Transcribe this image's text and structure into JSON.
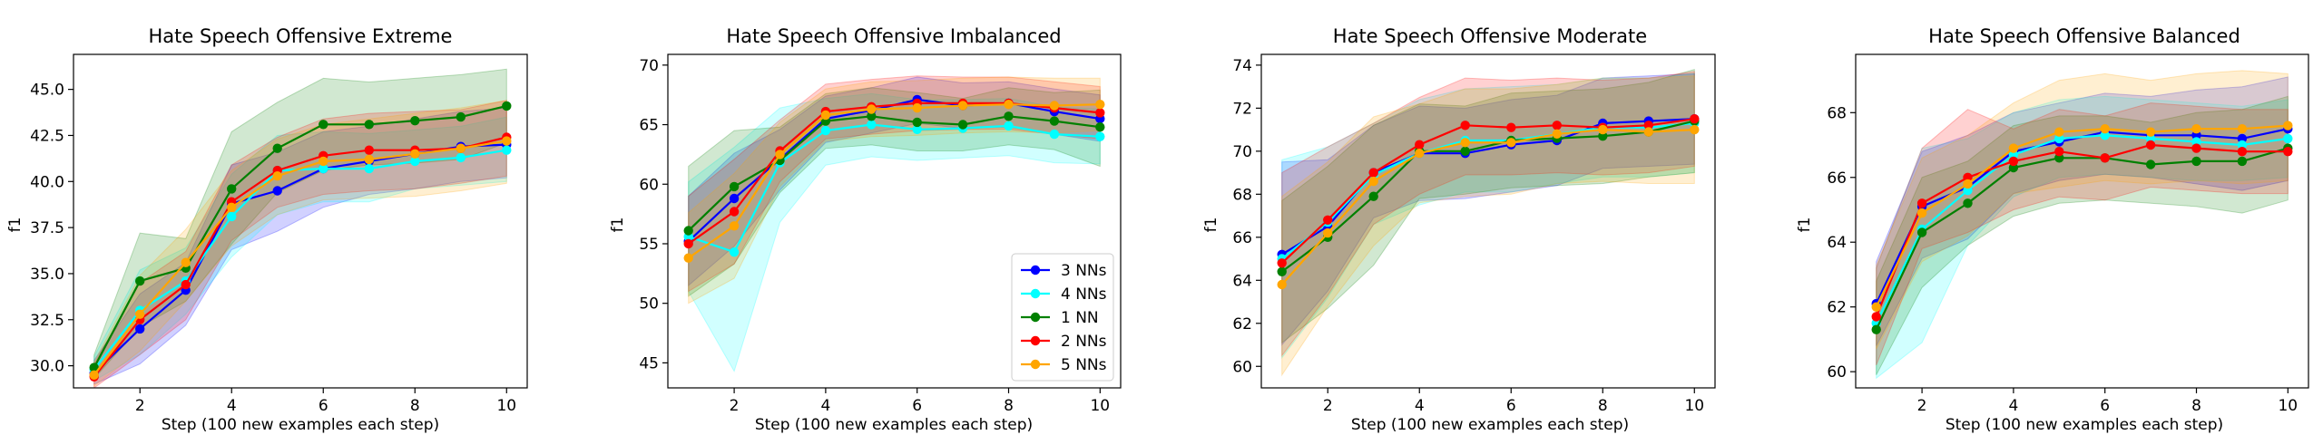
{
  "chart_data": [
    {
      "type": "line",
      "title": "Hate Speech Offensive Extreme",
      "xlabel": "Step (100 new examples each step)",
      "ylabel": "f1",
      "xlim": [
        0.55,
        10.45
      ],
      "ylim": [
        28.8,
        46.9
      ],
      "xticks": [
        2,
        4,
        6,
        8,
        10
      ],
      "yticks": [
        30.0,
        32.5,
        35.0,
        37.5,
        40.0,
        42.5,
        45.0
      ],
      "ytick_labels": [
        "30.0",
        "32.5",
        "35.0",
        "37.5",
        "40.0",
        "42.5",
        "45.0"
      ],
      "x": [
        1,
        2,
        3,
        4,
        5,
        6,
        7,
        8,
        9,
        10
      ],
      "series": [
        {
          "name": "3 NNs",
          "color": "#0000ff",
          "values": [
            29.6,
            32.0,
            34.1,
            38.8,
            39.5,
            40.7,
            41.1,
            41.5,
            41.9,
            42.0
          ],
          "lower": [
            29.0,
            30.1,
            32.2,
            36.3,
            37.3,
            38.6,
            39.3,
            39.6,
            40.0,
            40.2
          ],
          "upper": [
            30.3,
            33.9,
            35.6,
            40.9,
            41.6,
            42.7,
            43.0,
            43.4,
            43.8,
            44.0
          ]
        },
        {
          "name": "4 NNs",
          "color": "#00ffff",
          "values": [
            29.8,
            33.0,
            34.6,
            38.1,
            40.6,
            40.7,
            40.7,
            41.1,
            41.3,
            41.7
          ],
          "lower": [
            29.2,
            30.6,
            32.8,
            35.9,
            38.2,
            38.9,
            38.9,
            39.6,
            39.8,
            40.0
          ],
          "upper": [
            30.5,
            35.2,
            36.4,
            40.4,
            42.5,
            42.7,
            42.6,
            42.8,
            43.0,
            43.5
          ]
        },
        {
          "name": "1 NN",
          "color": "#008000",
          "values": [
            29.9,
            34.6,
            35.3,
            39.6,
            41.8,
            43.1,
            43.1,
            43.3,
            43.5,
            44.1
          ],
          "lower": [
            29.3,
            32.1,
            33.5,
            36.6,
            39.4,
            40.6,
            40.9,
            41.0,
            41.2,
            42.1
          ],
          "upper": [
            30.6,
            37.2,
            36.9,
            42.7,
            44.3,
            45.6,
            45.4,
            45.6,
            45.8,
            46.1
          ]
        },
        {
          "name": "2 NNs",
          "color": "#ff0000",
          "values": [
            29.4,
            32.5,
            34.4,
            38.9,
            40.6,
            41.4,
            41.7,
            41.7,
            41.8,
            42.4
          ],
          "lower": [
            28.8,
            30.6,
            32.5,
            36.8,
            38.6,
            39.3,
            39.5,
            39.6,
            39.9,
            40.3
          ],
          "upper": [
            30.1,
            34.5,
            36.2,
            40.9,
            42.4,
            43.4,
            43.7,
            43.8,
            43.9,
            44.4
          ]
        },
        {
          "name": "5 NNs",
          "color": "#ffa500",
          "values": [
            29.5,
            32.8,
            35.6,
            38.6,
            40.3,
            41.1,
            41.2,
            41.5,
            41.8,
            42.2
          ],
          "lower": [
            28.9,
            30.8,
            33.5,
            36.5,
            38.2,
            39.0,
            39.1,
            39.2,
            39.5,
            39.9
          ],
          "upper": [
            30.2,
            34.9,
            37.4,
            40.6,
            42.3,
            43.1,
            43.4,
            43.7,
            44.0,
            44.4
          ]
        }
      ]
    },
    {
      "type": "line",
      "title": "Hate Speech Offensive Imbalanced",
      "xlabel": "Step (100 new examples each step)",
      "ylabel": "f1",
      "xlim": [
        0.55,
        10.45
      ],
      "ylim": [
        42.9,
        70.9
      ],
      "xticks": [
        2,
        4,
        6,
        8,
        10
      ],
      "yticks": [
        45,
        50,
        55,
        60,
        65,
        70
      ],
      "ytick_labels": [
        "45",
        "50",
        "55",
        "60",
        "65",
        "70"
      ],
      "x": [
        1,
        2,
        3,
        4,
        5,
        6,
        7,
        8,
        9,
        10
      ],
      "legend": "lower-right",
      "series": [
        {
          "name": "3 NNs",
          "color": "#0000ff",
          "values": [
            55.2,
            58.8,
            62.1,
            65.5,
            66.2,
            67.1,
            66.6,
            66.8,
            66.1,
            65.5
          ],
          "lower": [
            51.5,
            54.8,
            59.5,
            63.5,
            64.3,
            65.1,
            64.7,
            64.8,
            64.2,
            63.6
          ],
          "upper": [
            59.0,
            62.6,
            64.6,
            67.4,
            68.1,
            69.0,
            68.5,
            68.6,
            68.0,
            67.5
          ]
        },
        {
          "name": "4 NNs",
          "color": "#00ffff",
          "values": [
            55.6,
            54.3,
            61.8,
            64.5,
            65.0,
            64.6,
            64.7,
            64.9,
            64.2,
            64.0
          ],
          "lower": [
            51.0,
            44.3,
            56.8,
            61.6,
            62.3,
            62.0,
            62.2,
            62.4,
            61.8,
            61.7
          ],
          "upper": [
            60.2,
            63.1,
            66.4,
            67.2,
            67.6,
            67.1,
            67.1,
            67.2,
            66.5,
            66.3
          ]
        },
        {
          "name": "1 NN",
          "color": "#008000",
          "values": [
            56.1,
            59.8,
            62.0,
            65.3,
            65.7,
            65.2,
            65.0,
            65.7,
            65.3,
            64.8
          ],
          "lower": [
            50.6,
            53.3,
            59.3,
            63.0,
            63.3,
            62.8,
            62.8,
            63.3,
            62.9,
            61.5
          ],
          "upper": [
            61.5,
            64.5,
            64.8,
            67.6,
            68.1,
            67.7,
            67.2,
            68.1,
            67.7,
            67.9
          ]
        },
        {
          "name": "2 NNs",
          "color": "#ff0000",
          "values": [
            55.0,
            57.7,
            62.8,
            66.1,
            66.5,
            66.8,
            66.8,
            66.8,
            66.4,
            66.0
          ],
          "lower": [
            51.0,
            53.3,
            60.2,
            63.8,
            64.2,
            64.5,
            64.6,
            64.6,
            64.2,
            63.8
          ],
          "upper": [
            59.0,
            62.1,
            65.4,
            68.4,
            68.8,
            69.1,
            69.0,
            69.0,
            68.6,
            68.2
          ]
        },
        {
          "name": "5 NNs",
          "color": "#ffa500",
          "values": [
            53.8,
            56.5,
            62.5,
            65.8,
            66.3,
            66.4,
            66.6,
            66.7,
            66.6,
            66.7
          ],
          "lower": [
            50.0,
            52.1,
            59.8,
            63.6,
            64.0,
            64.1,
            64.3,
            64.4,
            64.3,
            64.5
          ],
          "upper": [
            57.6,
            60.9,
            65.2,
            68.0,
            68.6,
            68.7,
            68.9,
            69.0,
            68.9,
            68.9
          ]
        }
      ]
    },
    {
      "type": "line",
      "title": "Hate Speech Offensive Moderate",
      "xlabel": "Step (100 new examples each step)",
      "ylabel": "f1",
      "xlim": [
        0.55,
        10.45
      ],
      "ylim": [
        59.0,
        74.5
      ],
      "xticks": [
        2,
        4,
        6,
        8,
        10
      ],
      "yticks": [
        60,
        62,
        64,
        66,
        68,
        70,
        72,
        74
      ],
      "ytick_labels": [
        "60",
        "62",
        "64",
        "66",
        "68",
        "70",
        "72",
        "74"
      ],
      "x": [
        1,
        2,
        3,
        4,
        5,
        6,
        7,
        8,
        9,
        10
      ],
      "series": [
        {
          "name": "3 NNs",
          "color": "#0000ff",
          "values": [
            65.2,
            66.5,
            69.0,
            69.9,
            69.9,
            70.3,
            70.5,
            71.3,
            71.4,
            71.5
          ],
          "lower": [
            61.0,
            63.5,
            66.9,
            67.7,
            67.8,
            68.1,
            68.4,
            69.2,
            69.3,
            69.4
          ],
          "upper": [
            69.5,
            69.6,
            71.2,
            72.1,
            72.0,
            72.4,
            72.6,
            73.4,
            73.5,
            73.6
          ]
        },
        {
          "name": "4 NNs",
          "color": "#00ffff",
          "values": [
            65.0,
            66.7,
            68.9,
            69.9,
            70.5,
            70.5,
            70.8,
            71.1,
            71.1,
            71.3
          ],
          "lower": [
            60.4,
            63.2,
            66.6,
            67.5,
            68.1,
            68.1,
            68.5,
            68.8,
            68.8,
            69.0
          ],
          "upper": [
            69.6,
            70.2,
            71.3,
            72.4,
            72.9,
            73.0,
            73.1,
            73.4,
            73.4,
            73.6
          ]
        },
        {
          "name": "1 NN",
          "color": "#008000",
          "values": [
            64.4,
            66.0,
            67.9,
            70.0,
            70.0,
            70.5,
            70.6,
            70.7,
            70.9,
            71.4
          ],
          "lower": [
            61.1,
            62.7,
            64.7,
            67.8,
            68.0,
            68.3,
            68.4,
            68.5,
            68.8,
            69.0
          ],
          "upper": [
            67.7,
            69.3,
            71.2,
            72.2,
            72.1,
            72.7,
            72.8,
            72.9,
            73.2,
            73.8
          ]
        },
        {
          "name": "2 NNs",
          "color": "#ff0000",
          "values": [
            64.8,
            66.8,
            69.0,
            70.3,
            71.2,
            71.1,
            71.2,
            71.1,
            71.2,
            71.5
          ],
          "lower": [
            60.5,
            63.3,
            66.6,
            68.0,
            68.9,
            68.9,
            69.0,
            68.9,
            69.0,
            69.3
          ],
          "upper": [
            69.0,
            70.2,
            71.3,
            72.5,
            73.4,
            73.3,
            73.4,
            73.3,
            73.4,
            73.7
          ]
        },
        {
          "name": "5 NNs",
          "color": "#ffa500",
          "values": [
            63.8,
            66.2,
            68.6,
            69.9,
            70.4,
            70.4,
            70.8,
            71.0,
            70.9,
            71.0
          ],
          "lower": [
            59.6,
            62.8,
            65.6,
            67.6,
            67.9,
            68.0,
            68.5,
            68.6,
            68.5,
            68.5
          ],
          "upper": [
            67.9,
            69.5,
            71.6,
            72.2,
            72.9,
            72.9,
            73.1,
            73.4,
            73.4,
            73.5
          ]
        }
      ]
    },
    {
      "type": "line",
      "title": "Hate Speech Offensive Balanced",
      "xlabel": "Step (100 new examples each step)",
      "ylabel": "f1",
      "xlim": [
        0.55,
        10.45
      ],
      "ylim": [
        59.5,
        69.8
      ],
      "xticks": [
        2,
        4,
        6,
        8,
        10
      ],
      "yticks": [
        60,
        62,
        64,
        66,
        68
      ],
      "ytick_labels": [
        "60",
        "62",
        "64",
        "66",
        "68"
      ],
      "x": [
        1,
        2,
        3,
        4,
        5,
        6,
        7,
        8,
        9,
        10
      ],
      "series": [
        {
          "name": "3 NNs",
          "color": "#0000ff",
          "values": [
            62.1,
            65.1,
            65.7,
            66.8,
            67.1,
            67.4,
            67.3,
            67.3,
            67.2,
            67.5
          ],
          "lower": [
            60.8,
            63.5,
            64.1,
            65.5,
            65.9,
            66.1,
            66.0,
            65.8,
            65.6,
            65.9
          ],
          "upper": [
            63.4,
            66.8,
            67.3,
            68.0,
            68.3,
            68.6,
            68.5,
            68.7,
            68.8,
            69.1
          ]
        },
        {
          "name": "4 NNs",
          "color": "#00ffff",
          "values": [
            61.5,
            64.4,
            65.6,
            66.7,
            67.2,
            67.3,
            67.2,
            67.1,
            67.0,
            67.2
          ],
          "lower": [
            59.8,
            60.9,
            63.9,
            65.4,
            66.0,
            66.1,
            66.0,
            65.9,
            65.9,
            66.0
          ],
          "upper": [
            63.2,
            66.9,
            67.2,
            68.0,
            68.4,
            68.5,
            68.4,
            68.3,
            68.2,
            68.4
          ]
        },
        {
          "name": "1 NN",
          "color": "#008000",
          "values": [
            61.3,
            64.3,
            65.2,
            66.3,
            66.6,
            66.6,
            66.4,
            66.5,
            66.5,
            66.9
          ],
          "lower": [
            59.9,
            62.6,
            63.9,
            64.8,
            65.2,
            65.3,
            65.2,
            65.1,
            64.9,
            65.3
          ],
          "upper": [
            62.8,
            66.0,
            66.5,
            67.6,
            67.9,
            67.9,
            67.7,
            68.0,
            68.1,
            68.5
          ]
        },
        {
          "name": "2 NNs",
          "color": "#ff0000",
          "values": [
            61.7,
            65.2,
            66.0,
            66.5,
            66.8,
            66.6,
            67.0,
            66.9,
            66.8,
            66.8
          ],
          "lower": [
            60.2,
            63.8,
            64.3,
            65.0,
            65.4,
            65.3,
            65.7,
            65.6,
            65.5,
            65.5
          ],
          "upper": [
            63.2,
            66.9,
            68.1,
            67.5,
            68.1,
            67.9,
            68.3,
            68.2,
            68.1,
            68.1
          ]
        },
        {
          "name": "5 NNs",
          "color": "#ffa500",
          "values": [
            62.0,
            64.9,
            65.8,
            66.9,
            67.4,
            67.5,
            67.4,
            67.5,
            67.5,
            67.6
          ],
          "lower": [
            60.7,
            63.4,
            64.2,
            65.5,
            65.7,
            65.9,
            65.8,
            65.9,
            65.8,
            65.9
          ],
          "upper": [
            63.3,
            66.6,
            67.3,
            68.3,
            69.0,
            69.2,
            69.0,
            69.2,
            69.3,
            69.2
          ]
        }
      ]
    }
  ]
}
